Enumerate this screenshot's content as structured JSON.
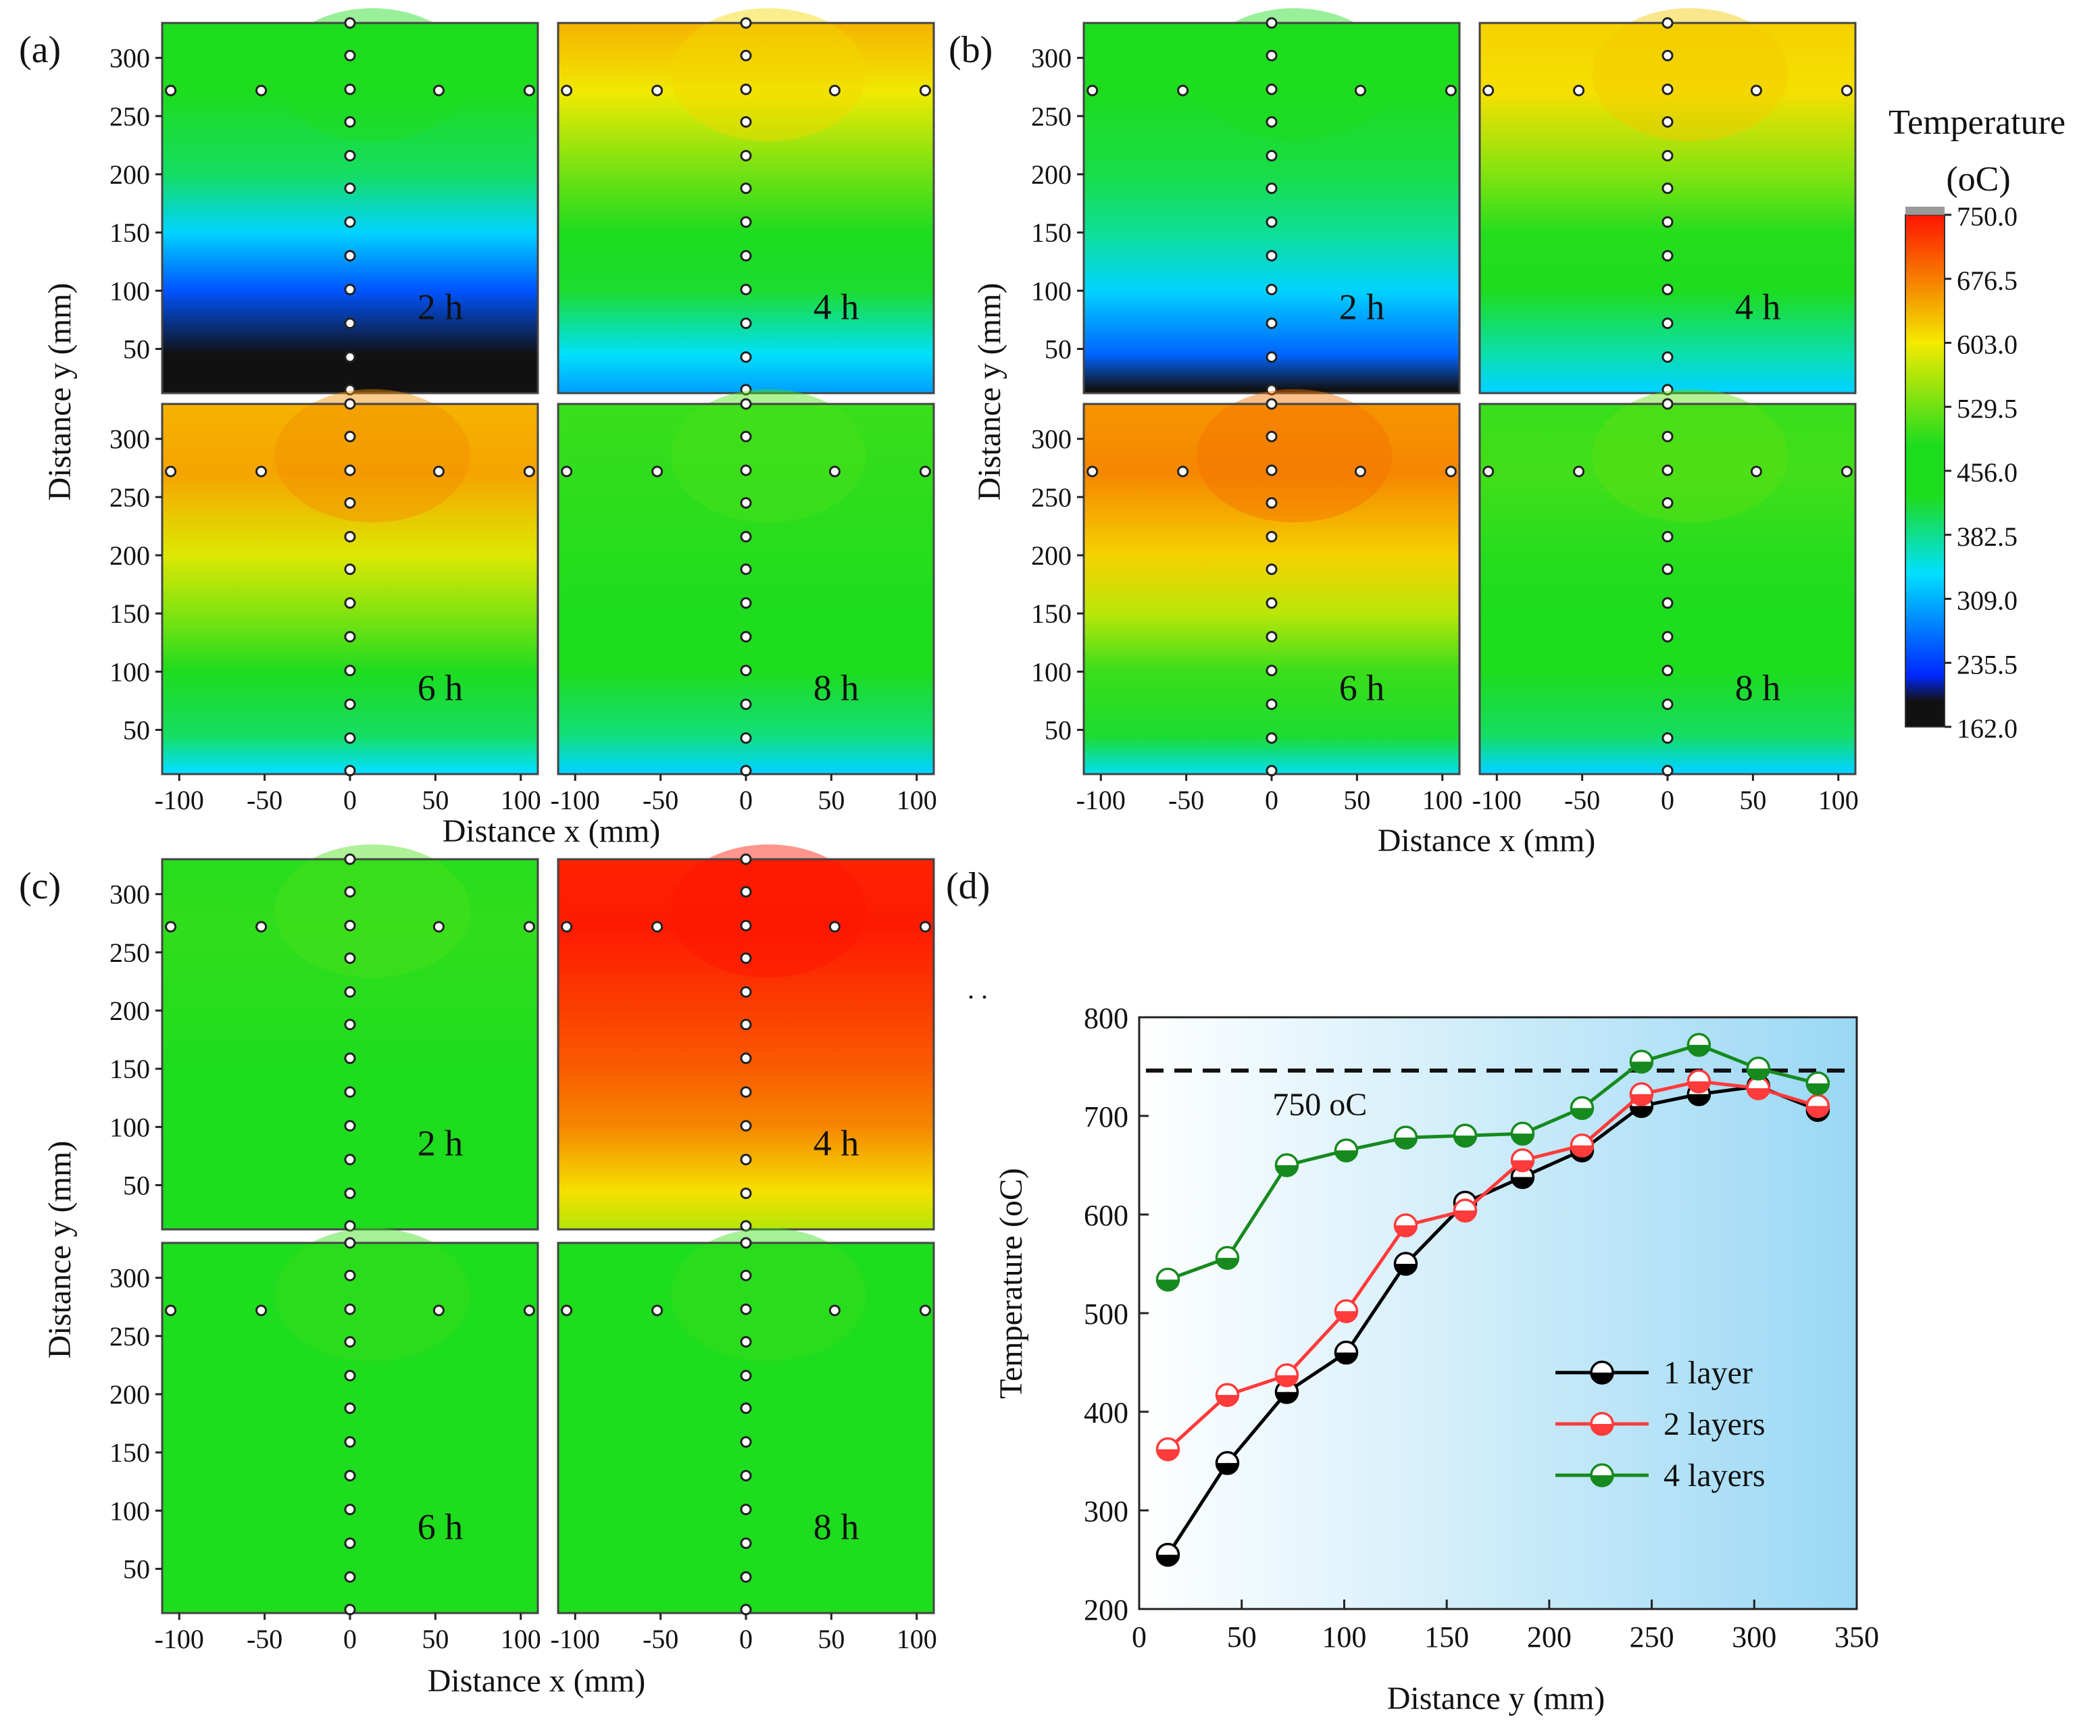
{
  "colors": {
    "black": "#111111",
    "blue": "#0026ff",
    "cyan": "#00e0ff",
    "green": "#1edc1e",
    "yellow": "#f5ea00",
    "orange": "#f58a00",
    "red": "#ff1400",
    "over_range": "#9a9a9a",
    "series_1": "#000000",
    "series_2": "#ff3b3b",
    "series_4": "#168a1e",
    "panel_d_bg_start": "#ffffff",
    "panel_d_bg_end": "#9ad8f4"
  },
  "heatmap_panels": [
    {
      "label": "(a)",
      "xlabel": "Distance x (mm)",
      "ylabel": "Distance y (mm)",
      "times": [
        "2 h",
        "4 h",
        "6 h",
        "8 h"
      ]
    },
    {
      "label": "(b)",
      "xlabel": "Distance x (mm)",
      "ylabel": "Distance y (mm)",
      "times": [
        "2 h",
        "4 h",
        "6 h",
        "8 h"
      ]
    },
    {
      "label": "(c)",
      "xlabel": "Distance x (mm)",
      "ylabel": "Distance y (mm)",
      "times": [
        "2 h",
        "4 h",
        "6 h",
        "8 h"
      ]
    }
  ],
  "heatmap_axes": {
    "x_ticks": [
      "-100",
      "-50",
      "0",
      "50",
      "100"
    ],
    "y_ticks": [
      "50",
      "100",
      "150",
      "200",
      "250",
      "300"
    ],
    "x_range": [
      -110,
      110
    ],
    "y_range": [
      12,
      330
    ]
  },
  "colorbar": {
    "title": "Temperature",
    "unit": "(oC)",
    "ticks": [
      "750.0",
      "676.5",
      "603.0",
      "529.5",
      "456.0",
      "382.5",
      "309.0",
      "235.5",
      "162.0"
    ],
    "range": [
      162.0,
      750.0
    ]
  },
  "chart_data": [
    {
      "type": "heatmap",
      "title": "(a)",
      "subplots": [
        "2 h",
        "4 h",
        "6 h",
        "8 h"
      ],
      "xlabel": "Distance x (mm)",
      "ylabel": "Distance y (mm)",
      "xlim": [
        -110,
        110
      ],
      "ylim": [
        12,
        330
      ],
      "approx_temperature_C": {
        "y_levels_mm": [
          15,
          45,
          100,
          150,
          200,
          270,
          330
        ],
        "2 h": [
          162,
          190,
          250,
          330,
          400,
          450,
          470
        ],
        "4 h": [
          300,
          340,
          420,
          470,
          530,
          600,
          640
        ],
        "6 h": [
          340,
          400,
          470,
          540,
          590,
          650,
          640
        ],
        "8 h": [
          330,
          390,
          470,
          480,
          490,
          495,
          500
        ]
      },
      "probe_points": {
        "x_mm": [
          -105,
          -52,
          0,
          52,
          105
        ],
        "row_y_mm": 272,
        "center_y_mm": [
          15,
          43,
          72,
          101,
          130,
          159,
          188,
          216,
          245,
          273,
          302,
          330
        ]
      }
    },
    {
      "type": "heatmap",
      "title": "(b)",
      "subplots": [
        "2 h",
        "4 h",
        "6 h",
        "8 h"
      ],
      "xlabel": "Distance x (mm)",
      "ylabel": "Distance y (mm)",
      "xlim": [
        -110,
        110
      ],
      "ylim": [
        12,
        330
      ],
      "approx_temperature_C": {
        "y_levels_mm": [
          15,
          45,
          100,
          150,
          200,
          270,
          330
        ],
        "2 h": [
          162,
          260,
          330,
          380,
          410,
          450,
          460
        ],
        "4 h": [
          330,
          370,
          450,
          490,
          540,
          610,
          620
        ],
        "6 h": [
          350,
          420,
          500,
          570,
          620,
          670,
          660
        ],
        "8 h": [
          330,
          400,
          470,
          480,
          490,
          505,
          500
        ]
      },
      "probe_points": {
        "x_mm": [
          -105,
          -52,
          0,
          52,
          105
        ],
        "row_y_mm": 272,
        "center_y_mm": [
          15,
          43,
          72,
          101,
          130,
          159,
          188,
          216,
          245,
          273,
          302,
          330
        ]
      }
    },
    {
      "type": "heatmap",
      "title": "(c)",
      "subplots": [
        "2 h",
        "4 h",
        "6 h",
        "8 h"
      ],
      "xlabel": "Distance x (mm)",
      "ylabel": "Distance y (mm)",
      "xlim": [
        -110,
        110
      ],
      "ylim": [
        12,
        330
      ],
      "approx_temperature_C": {
        "y_levels_mm": [
          15,
          45,
          100,
          150,
          200,
          270,
          330
        ],
        "2 h": [
          430,
          460,
          480,
          485,
          490,
          495,
          490
        ],
        "4 h": [
          570,
          610,
          670,
          700,
          720,
          745,
          740
        ],
        "6 h": [
          480,
          485,
          485,
          485,
          485,
          485,
          485
        ],
        "8 h": [
          470,
          480,
          485,
          485,
          485,
          485,
          485
        ]
      },
      "probe_points": {
        "x_mm": [
          -105,
          -52,
          0,
          52,
          105
        ],
        "row_y_mm": 272,
        "center_y_mm": [
          15,
          43,
          72,
          101,
          130,
          159,
          188,
          216,
          245,
          273,
          302,
          330
        ]
      }
    },
    {
      "type": "line",
      "title": "(d)",
      "xlabel": "Distance y (mm)",
      "ylabel": "Temperature (oC)",
      "xlim": [
        0,
        350
      ],
      "ylim": [
        200,
        800
      ],
      "x_ticks": [
        "0",
        "50",
        "100",
        "150",
        "200",
        "250",
        "300",
        "350"
      ],
      "y_ticks": [
        "200",
        "300",
        "400",
        "500",
        "600",
        "700",
        "800"
      ],
      "x": [
        14,
        43,
        72,
        101,
        130,
        159,
        187,
        216,
        245,
        273,
        302,
        331
      ],
      "series": [
        {
          "name": "1 layer",
          "values": [
            255,
            348,
            420,
            460,
            550,
            612,
            638,
            665,
            710,
            722,
            730,
            706
          ]
        },
        {
          "name": "2 layers",
          "values": [
            362,
            417,
            437,
            502,
            589,
            604,
            655,
            670,
            722,
            735,
            728,
            710
          ]
        },
        {
          "name": "4 layers",
          "values": [
            534,
            556,
            650,
            665,
            678,
            680,
            682,
            708,
            755,
            772,
            748,
            733
          ]
        }
      ],
      "reference_line": {
        "value": 746,
        "label": "750 oC"
      },
      "legend_position": "bottom-right",
      "annotation": ". ."
    }
  ]
}
